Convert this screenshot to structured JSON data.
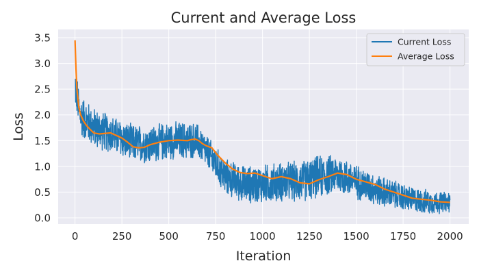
{
  "chart_data": {
    "type": "line",
    "title": "Current and Average Loss",
    "xlabel": "Iteration",
    "ylabel": "Loss",
    "xlim": [
      -90,
      2100
    ],
    "ylim": [
      -0.12,
      3.66
    ],
    "xticks": [
      0,
      250,
      500,
      750,
      1000,
      1250,
      1500,
      1750,
      2000
    ],
    "yticks": [
      0.0,
      0.5,
      1.0,
      1.5,
      2.0,
      2.5,
      3.0,
      3.5
    ],
    "grid": true,
    "legend_position": "top-right",
    "background": "#eaeaf2",
    "series": [
      {
        "name": "Current Loss",
        "color": "#1f77b4",
        "kind": "noisy",
        "trend": [
          [
            0,
            2.6
          ],
          [
            25,
            2.0
          ],
          [
            100,
            1.75
          ],
          [
            200,
            1.62
          ],
          [
            300,
            1.45
          ],
          [
            400,
            1.42
          ],
          [
            500,
            1.5
          ],
          [
            650,
            1.5
          ],
          [
            700,
            1.3
          ],
          [
            750,
            1.05
          ],
          [
            800,
            0.8
          ],
          [
            900,
            0.65
          ],
          [
            1000,
            0.65
          ],
          [
            1100,
            0.7
          ],
          [
            1200,
            0.7
          ],
          [
            1300,
            0.8
          ],
          [
            1400,
            0.85
          ],
          [
            1500,
            0.7
          ],
          [
            1600,
            0.55
          ],
          [
            1700,
            0.45
          ],
          [
            1800,
            0.35
          ],
          [
            1900,
            0.3
          ],
          [
            2000,
            0.3
          ]
        ],
        "noise": [
          [
            0,
            0.45
          ],
          [
            200,
            0.4
          ],
          [
            600,
            0.4
          ],
          [
            700,
            0.35
          ],
          [
            800,
            0.38
          ],
          [
            1300,
            0.45
          ],
          [
            1600,
            0.33
          ],
          [
            2000,
            0.22
          ]
        ]
      },
      {
        "name": "Average Loss",
        "color": "#ff7f0e",
        "kind": "line",
        "x": [
          0,
          5,
          10,
          20,
          30,
          45,
          60,
          80,
          100,
          130,
          160,
          190,
          220,
          250,
          280,
          310,
          340,
          370,
          400,
          450,
          500,
          550,
          600,
          620,
          640,
          660,
          680,
          700,
          730,
          760,
          800,
          840,
          880,
          920,
          960,
          1000,
          1050,
          1100,
          1150,
          1200,
          1250,
          1300,
          1350,
          1400,
          1450,
          1500,
          1550,
          1600,
          1650,
          1700,
          1750,
          1800,
          1850,
          1900,
          1950,
          2000
        ],
        "y": [
          3.45,
          2.9,
          2.5,
          2.15,
          2.0,
          1.88,
          1.8,
          1.72,
          1.65,
          1.63,
          1.64,
          1.65,
          1.6,
          1.55,
          1.47,
          1.38,
          1.36,
          1.37,
          1.42,
          1.47,
          1.5,
          1.51,
          1.5,
          1.52,
          1.53,
          1.5,
          1.44,
          1.4,
          1.36,
          1.22,
          1.07,
          0.95,
          0.88,
          0.86,
          0.87,
          0.82,
          0.76,
          0.8,
          0.76,
          0.68,
          0.66,
          0.74,
          0.8,
          0.87,
          0.84,
          0.75,
          0.7,
          0.65,
          0.56,
          0.5,
          0.44,
          0.38,
          0.36,
          0.34,
          0.31,
          0.3
        ]
      }
    ]
  }
}
